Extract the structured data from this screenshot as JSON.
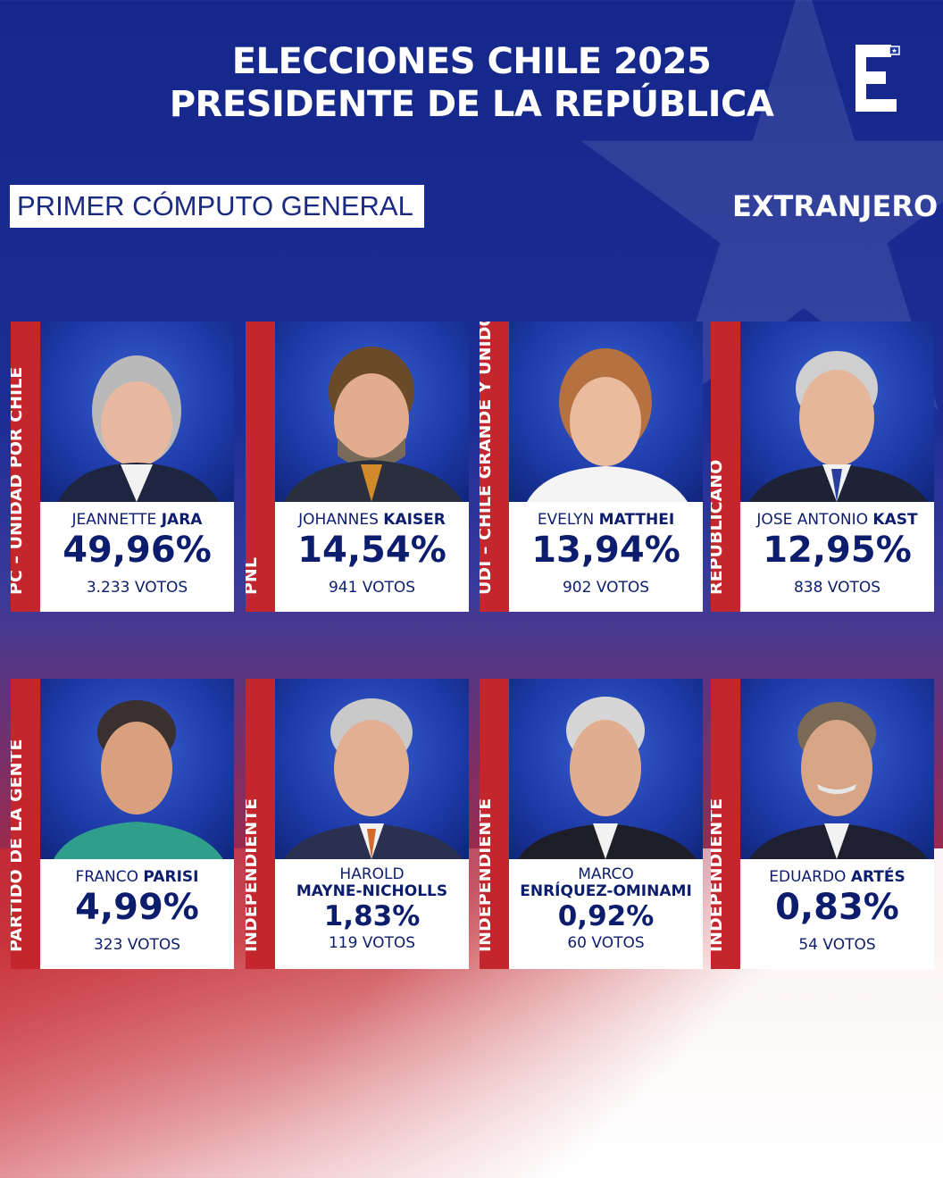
{
  "header": {
    "title_line1": "ELECCIONES CHILE 2025",
    "title_line2": "PRESIDENTE DE LA REPÚBLICA",
    "subtitle": "PRIMER CÓMPUTO GENERAL",
    "region": "EXTRANJERO",
    "logo_letter": "E"
  },
  "colors": {
    "party_bar": "#c4262e",
    "text_dark": "#0d1d6e",
    "photo_bg": "#1d3aa8"
  },
  "candidates": [
    {
      "party": "PC – UNIDAD POR CHILE",
      "first": "JEANNETTE",
      "last": "JARA",
      "pct": "49,96%",
      "votes": "3.233 VOTOS"
    },
    {
      "party": "PNL",
      "first": "JOHANNES",
      "last": "KAISER",
      "pct": "14,54%",
      "votes": "941 VOTOS"
    },
    {
      "party": "UDI – CHILE GRANDE Y UNIDO",
      "first": "EVELYN",
      "last": "MATTHEI",
      "pct": "13,94%",
      "votes": "902 VOTOS"
    },
    {
      "party": "REPUBLICANO",
      "first": "JOSE ANTONIO",
      "last": "KAST",
      "pct": "12,95%",
      "votes": "838 VOTOS"
    },
    {
      "party": "PARTIDO DE LA GENTE",
      "first": "FRANCO",
      "last": "PARISI",
      "pct": "4,99%",
      "votes": "323 VOTOS"
    },
    {
      "party": "INDEPENDIENTE",
      "first": "HAROLD",
      "last": "MAYNE-NICHOLLS",
      "pct": "1,83%",
      "votes": "119 VOTOS"
    },
    {
      "party": "INDEPENDIENTE",
      "first": "MARCO",
      "last": "ENRÍQUEZ-OMINAMI",
      "pct": "0,92%",
      "votes": "60 VOTOS"
    },
    {
      "party": "INDEPENDIENTE",
      "first": "EDUARDO",
      "last": "ARTÉS",
      "pct": "0,83%",
      "votes": "54 VOTOS"
    }
  ]
}
